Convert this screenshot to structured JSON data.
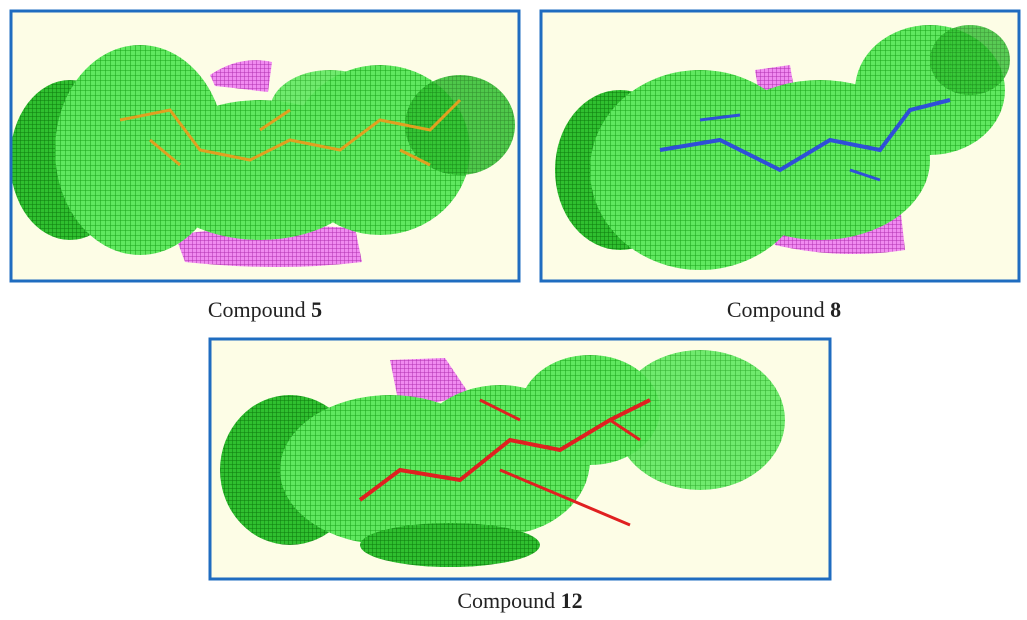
{
  "panels": [
    {
      "label": "Compound",
      "number": "5"
    },
    {
      "label": "Compound",
      "number": "8"
    },
    {
      "label": "Compound",
      "number": "12"
    }
  ]
}
